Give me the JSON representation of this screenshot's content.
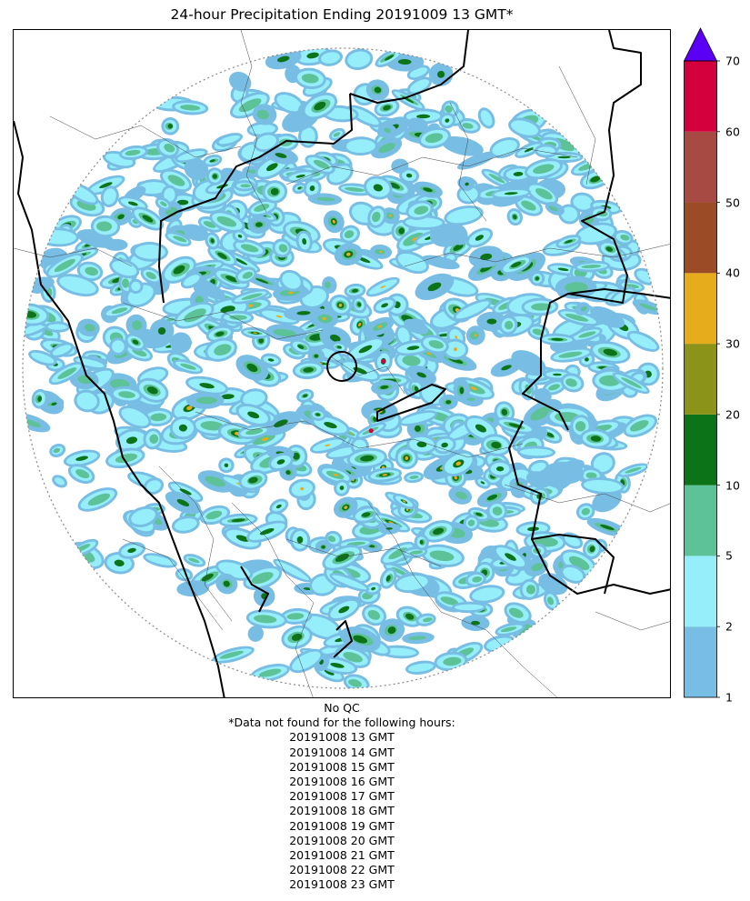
{
  "title": "24-hour Precipitation Ending 20191009 13 GMT*",
  "colorbar": {
    "bins": [
      {
        "from": 1,
        "to": 2,
        "color": "#78bde3"
      },
      {
        "from": 2,
        "to": 5,
        "color": "#96eefa"
      },
      {
        "from": 5,
        "to": 10,
        "color": "#5ec298"
      },
      {
        "from": 10,
        "to": 20,
        "color": "#0c7318"
      },
      {
        "from": 20,
        "to": 30,
        "color": "#8b9319"
      },
      {
        "from": 30,
        "to": 40,
        "color": "#e6ac1b"
      },
      {
        "from": 40,
        "to": 50,
        "color": "#9b4b26"
      },
      {
        "from": 50,
        "to": 60,
        "color": "#a84a44"
      },
      {
        "from": 60,
        "to": 70,
        "color": "#d4003e"
      }
    ],
    "extend_max_color": "#5b00f5",
    "tick_labels": [
      "1",
      "2",
      "5",
      "10",
      "20",
      "30",
      "40",
      "50",
      "60",
      "70"
    ]
  },
  "notes": {
    "qc": "No QC",
    "missing_header": "*Data not found for the following hours:",
    "missing_hours": [
      "20191008 13 GMT",
      "20191008 14 GMT",
      "20191008 15 GMT",
      "20191008 16 GMT",
      "20191008 17 GMT",
      "20191008 18 GMT",
      "20191008 19 GMT",
      "20191008 20 GMT",
      "20191008 21 GMT",
      "20191008 22 GMT",
      "20191008 23 GMT"
    ]
  }
}
